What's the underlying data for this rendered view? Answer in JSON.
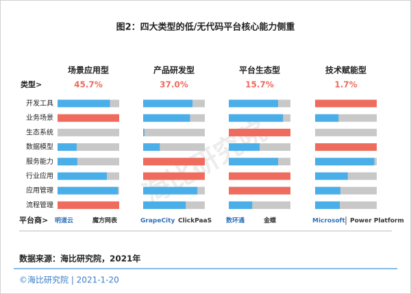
{
  "chart_data": {
    "type": "bar",
    "title": "图2：四大类型的低/无代码平台核心能力侧重",
    "row_header": "类型>",
    "vendor_header": "平台商>",
    "categories": [
      "开发工具",
      "业务场景",
      "生态系统",
      "数据模型",
      "服务能力",
      "行业应用",
      "应用管理",
      "流程管理"
    ],
    "xlim": [
      0,
      100
    ],
    "track_color": "#c8c8c8",
    "series": [
      {
        "name": "场景应用型",
        "share": {
          "value": 45.7,
          "label": "45.7%"
        },
        "values": [
          85,
          100,
          0,
          31,
          32,
          80,
          98,
          100
        ],
        "colors": [
          "#4aaee8",
          "#ee6b5d",
          "#4aaee8",
          "#4aaee8",
          "#4aaee8",
          "#4aaee8",
          "#4aaee8",
          "#ee6b5d"
        ],
        "vendors": [
          "明道云",
          "魔方网表"
        ]
      },
      {
        "name": "产品研发型",
        "share": {
          "value": 37.0,
          "label": "37.0%"
        },
        "values": [
          80,
          76,
          2,
          27,
          100,
          100,
          88,
          69
        ],
        "colors": [
          "#4aaee8",
          "#4aaee8",
          "#4aaee8",
          "#4aaee8",
          "#ee6b5d",
          "#ee6b5d",
          "#4aaee8",
          "#4aaee8"
        ],
        "vendors": [
          "GrapeCity",
          "ClickPaaS"
        ]
      },
      {
        "name": "平台生态型",
        "share": {
          "value": 15.7,
          "label": "15.7%"
        },
        "values": [
          80,
          88,
          100,
          50,
          80,
          100,
          100,
          38
        ],
        "colors": [
          "#4aaee8",
          "#4aaee8",
          "#ee6b5d",
          "#4aaee8",
          "#4aaee8",
          "#ee6b5d",
          "#ee6b5d",
          "#4aaee8"
        ],
        "vendors": [
          "数环通",
          "金蝶"
        ]
      },
      {
        "name": "技术赋能型",
        "share": {
          "value": 1.7,
          "label": "1.7%"
        },
        "values": [
          100,
          38,
          0,
          100,
          96,
          53,
          41,
          40
        ],
        "colors": [
          "#ee6b5d",
          "#4aaee8",
          "#4aaee8",
          "#ee6b5d",
          "#4aaee8",
          "#4aaee8",
          "#4aaee8",
          "#4aaee8"
        ],
        "vendors": [
          "Microsoft",
          "Power Platform"
        ]
      }
    ],
    "watermark": "海比研究院",
    "source": "数据来源：海比研究院，2021年",
    "footer": "©海比研究院 | 2021-1-20"
  }
}
